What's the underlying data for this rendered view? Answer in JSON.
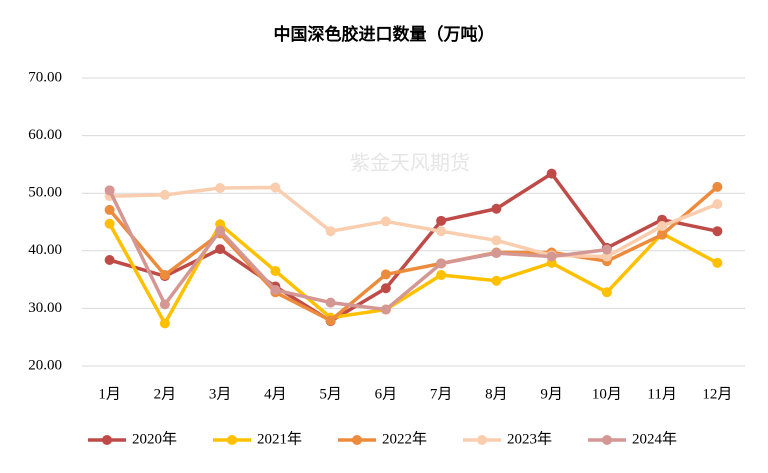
{
  "chart_data": {
    "type": "line",
    "title": "中国深色胶进口数量（万吨）",
    "watermark": "紫金天风期货",
    "categories": [
      "1月",
      "2月",
      "3月",
      "4月",
      "5月",
      "6月",
      "7月",
      "8月",
      "9月",
      "10月",
      "11月",
      "12月"
    ],
    "series": [
      {
        "name": "2020年",
        "color": "#be4b48",
        "values": [
          38.4,
          35.6,
          40.3,
          33.8,
          27.8,
          33.5,
          45.2,
          47.3,
          53.4,
          40.5,
          45.4,
          43.4
        ]
      },
      {
        "name": "2021年",
        "color": "#ffc000",
        "values": [
          44.7,
          27.4,
          44.6,
          36.5,
          28.4,
          29.8,
          35.8,
          34.8,
          37.9,
          32.8,
          43.0,
          37.9
        ]
      },
      {
        "name": "2022年",
        "color": "#ed8b3c",
        "values": [
          47.1,
          35.8,
          43.0,
          32.8,
          27.9,
          35.9,
          37.8,
          39.7,
          39.7,
          38.2,
          42.8,
          51.1
        ]
      },
      {
        "name": "2023年",
        "color": "#f9cdae",
        "values": [
          49.5,
          49.7,
          50.9,
          51.0,
          43.4,
          45.1,
          43.4,
          41.8,
          39.2,
          39.0,
          44.3,
          48.1
        ]
      },
      {
        "name": "2024年",
        "color": "#d49793",
        "values": [
          50.5,
          30.7,
          43.5,
          33.2,
          31.0,
          29.8,
          37.8,
          39.6,
          39.0,
          40.2,
          null,
          null
        ]
      }
    ],
    "ylim": [
      20,
      70
    ],
    "yticks": [
      {
        "value": 20,
        "label": "20.00"
      },
      {
        "value": 30,
        "label": "30.00"
      },
      {
        "value": 40,
        "label": "40.00"
      },
      {
        "value": 50,
        "label": "50.00"
      },
      {
        "value": 60,
        "label": "60.00"
      },
      {
        "value": 70,
        "label": "70.00"
      }
    ],
    "grid": true,
    "legend": "bottom"
  }
}
